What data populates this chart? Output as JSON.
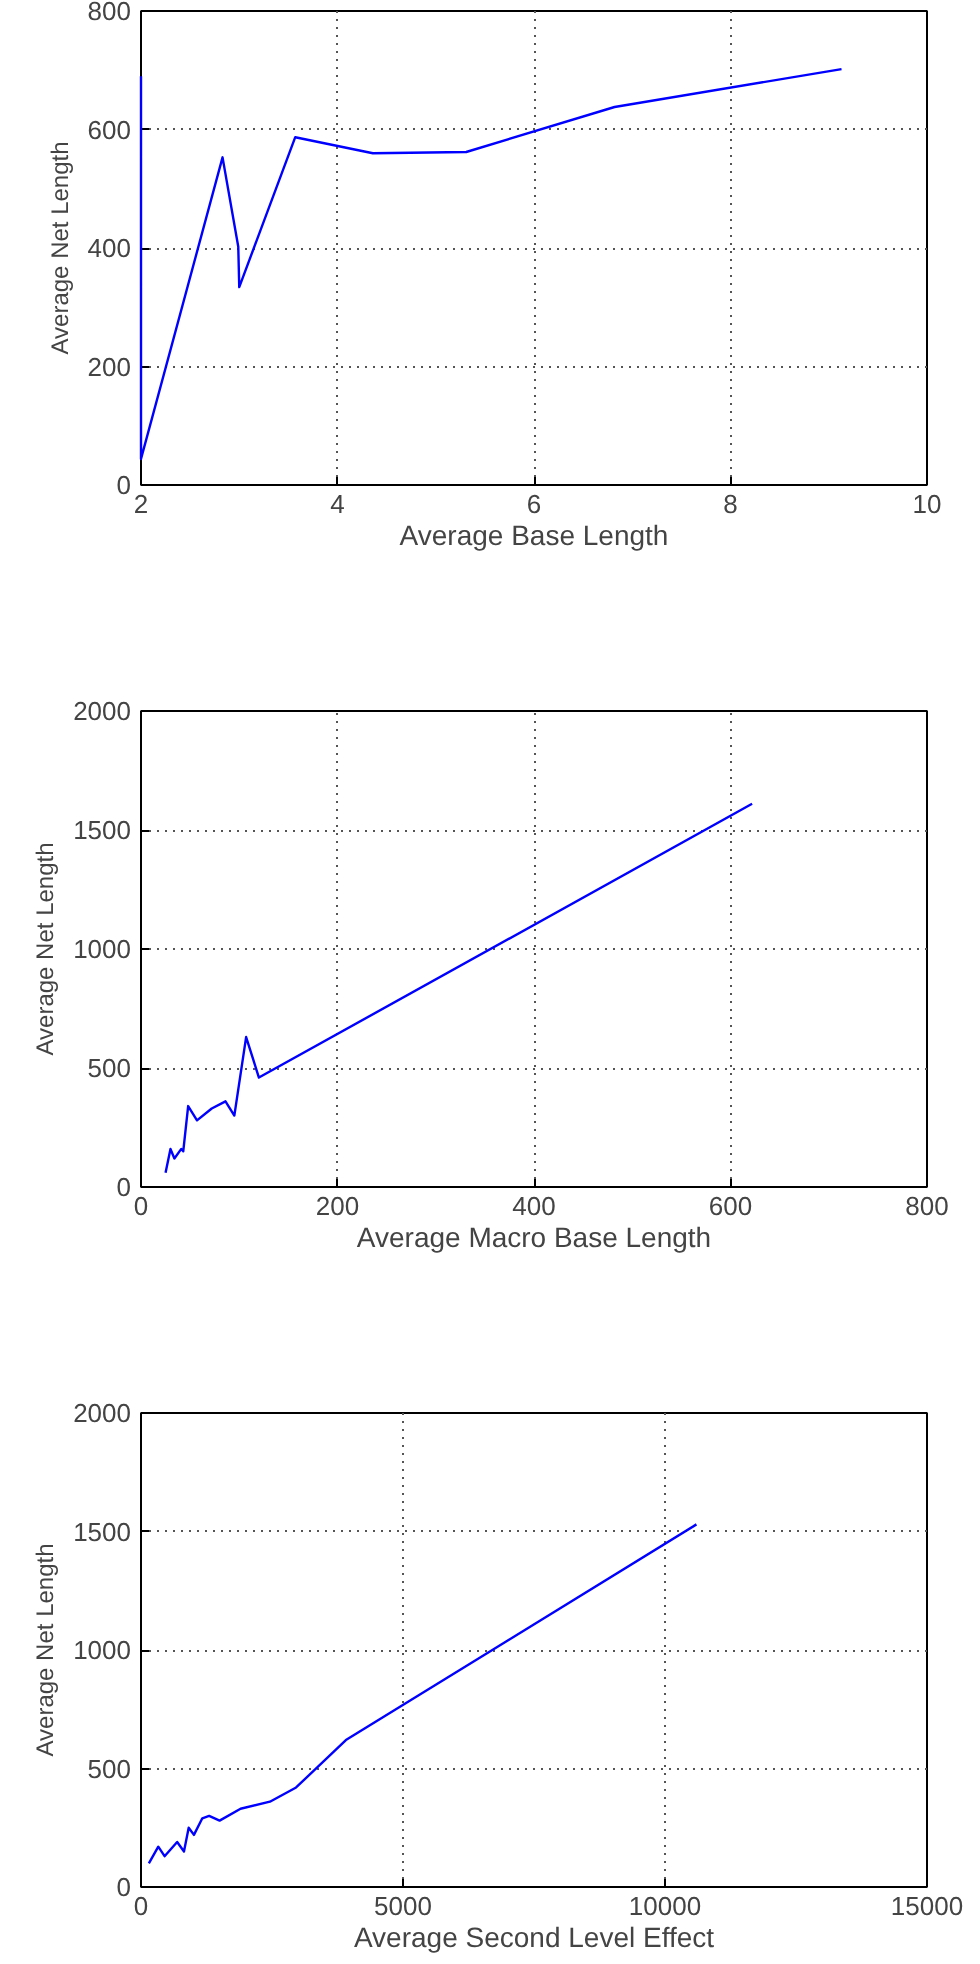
{
  "chart_data": [
    {
      "type": "line",
      "xlabel": "Average Base Length",
      "ylabel": "Average Net Length",
      "xlim": [
        2,
        10
      ],
      "ylim": [
        0,
        800
      ],
      "xticks": [
        2,
        4,
        6,
        8,
        10
      ],
      "yticks": [
        0,
        200,
        400,
        600,
        800
      ],
      "grid": true,
      "series": [
        {
          "color": "#0000ff",
          "x": [
            2,
            2,
            2.83,
            2.99,
            3.0,
            3.57,
            4.36,
            5.31,
            6.82,
            9.13
          ],
          "values": [
            690,
            44,
            553,
            402,
            334,
            587,
            560,
            562,
            638,
            702
          ]
        }
      ]
    },
    {
      "type": "line",
      "xlabel": "Average Macro Base Length",
      "ylabel": "Average Net Length",
      "xlim": [
        0,
        800
      ],
      "ylim": [
        0,
        2000
      ],
      "xticks": [
        0,
        200,
        400,
        600,
        800
      ],
      "yticks": [
        0,
        500,
        1000,
        1500,
        2000
      ],
      "grid": true,
      "series": [
        {
          "color": "#0000ff",
          "x": [
            25,
            30,
            34,
            41,
            43,
            48,
            57,
            72,
            86,
            95,
            107,
            120,
            622
          ],
          "values": [
            60,
            160,
            120,
            160,
            150,
            340,
            280,
            330,
            360,
            300,
            630,
            460,
            1610
          ]
        }
      ]
    },
    {
      "type": "line",
      "xlabel": "Average Second Level Effect",
      "ylabel": "Average Net Length",
      "xlim": [
        0,
        15000
      ],
      "ylim": [
        0,
        2000
      ],
      "xticks": [
        0,
        5000,
        10000,
        15000
      ],
      "yticks": [
        0,
        500,
        1000,
        1500,
        2000
      ],
      "grid": true,
      "series": [
        {
          "color": "#0000ff",
          "x": [
            150,
            330,
            450,
            690,
            820,
            910,
            1010,
            1170,
            1300,
            1500,
            1900,
            2460,
            2960,
            3910,
            10600
          ],
          "values": [
            100,
            170,
            130,
            190,
            150,
            250,
            220,
            290,
            300,
            280,
            330,
            360,
            420,
            620,
            1530
          ]
        }
      ]
    }
  ]
}
